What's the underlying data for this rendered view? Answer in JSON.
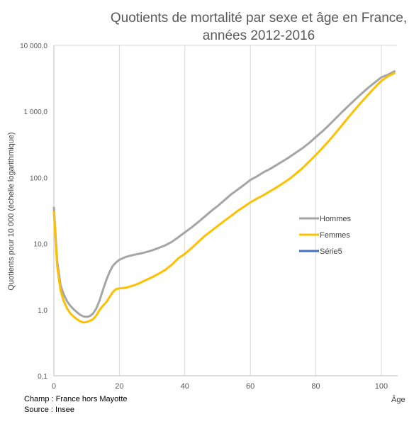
{
  "chart_data": {
    "type": "line",
    "title": [
      "Quotients de mortalité par sexe et âge en France,",
      "années  2012-2016"
    ],
    "ylabel": "Quotients pour 10 000 (échelle logarithmique)",
    "xlabel": "Âge",
    "yscale": "log",
    "ylim": [
      0.1,
      10000
    ],
    "xlim": [
      0,
      105
    ],
    "y_ticks": [
      0.1,
      1,
      10,
      100,
      1000,
      10000
    ],
    "y_tick_labels": [
      "0,1",
      "1,0",
      "10,0",
      "100,0",
      "1 000,0",
      "10 000,0"
    ],
    "x_ticks": [
      0,
      20,
      40,
      60,
      80,
      100
    ],
    "x_tick_labels": [
      "0",
      "20",
      "40",
      "60",
      "80",
      "100"
    ],
    "grid": "vertical",
    "legend_position": "right",
    "series": [
      {
        "name": "Hommes",
        "color": "#a5a5a5",
        "x": [
          0,
          1,
          2,
          3,
          4,
          5,
          6,
          7,
          8,
          9,
          10,
          11,
          12,
          13,
          14,
          15,
          16,
          17,
          18,
          19,
          20,
          22,
          24,
          26,
          28,
          30,
          32,
          34,
          36,
          38,
          40,
          42,
          44,
          46,
          48,
          50,
          52,
          54,
          56,
          58,
          60,
          62,
          64,
          66,
          68,
          70,
          72,
          74,
          76,
          78,
          80,
          82,
          84,
          86,
          88,
          90,
          92,
          94,
          96,
          98,
          100,
          102,
          104
        ],
        "y": [
          35,
          5.5,
          2.4,
          1.7,
          1.35,
          1.15,
          1.02,
          0.92,
          0.84,
          0.79,
          0.78,
          0.8,
          0.88,
          1.05,
          1.4,
          2.0,
          2.8,
          3.7,
          4.6,
          5.2,
          5.7,
          6.3,
          6.7,
          7.0,
          7.4,
          7.9,
          8.6,
          9.4,
          10.6,
          12.5,
          14.8,
          17.5,
          21,
          25.5,
          31,
          37,
          45,
          55,
          65,
          77,
          92,
          104,
          120,
          135,
          155,
          178,
          205,
          240,
          280,
          335,
          410,
          500,
          620,
          780,
          980,
          1220,
          1520,
          1870,
          2280,
          2750,
          3280,
          3600,
          4050
        ]
      },
      {
        "name": "Femmes",
        "color": "#ffc000",
        "x": [
          0,
          1,
          2,
          3,
          4,
          5,
          6,
          7,
          8,
          9,
          10,
          11,
          12,
          13,
          14,
          15,
          16,
          17,
          18,
          19,
          20,
          22,
          24,
          26,
          28,
          30,
          32,
          34,
          36,
          38,
          40,
          42,
          44,
          46,
          48,
          50,
          52,
          54,
          56,
          58,
          60,
          62,
          64,
          66,
          68,
          70,
          72,
          74,
          76,
          78,
          80,
          82,
          84,
          86,
          88,
          90,
          92,
          94,
          96,
          98,
          100,
          102,
          104
        ],
        "y": [
          30,
          4.6,
          2.0,
          1.35,
          1.05,
          0.88,
          0.79,
          0.72,
          0.67,
          0.64,
          0.65,
          0.68,
          0.72,
          0.82,
          1.0,
          1.15,
          1.3,
          1.55,
          1.85,
          2.05,
          2.1,
          2.15,
          2.3,
          2.5,
          2.8,
          3.1,
          3.5,
          4.0,
          4.8,
          6.0,
          7.0,
          8.5,
          10.5,
          13,
          15.5,
          18.5,
          22,
          26,
          31,
          36,
          42,
          48,
          54,
          62,
          71,
          82,
          96,
          115,
          140,
          175,
          220,
          280,
          360,
          470,
          620,
          820,
          1080,
          1400,
          1800,
          2300,
          2900,
          3400,
          3800
        ]
      },
      {
        "name": "Série5",
        "color": "#4472c4",
        "x": [],
        "y": []
      }
    ]
  },
  "notes": {
    "champ": "Champ : France hors Mayotte",
    "source": "Source : Insee"
  }
}
